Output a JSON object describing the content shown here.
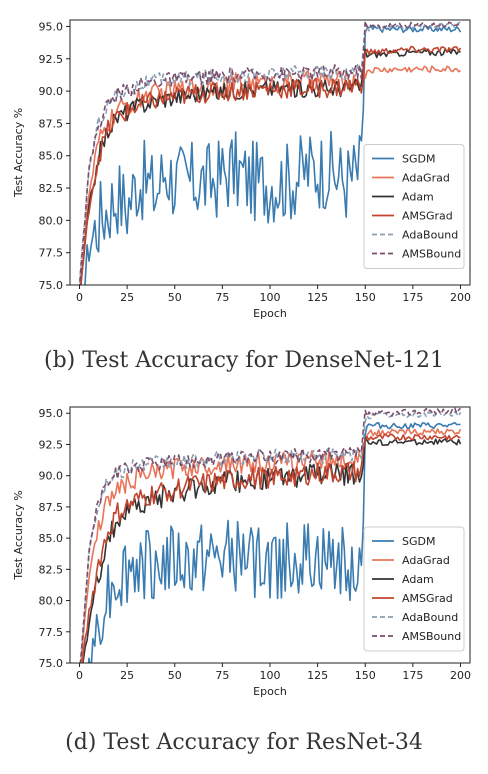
{
  "chart_data": [
    {
      "type": "line",
      "caption": "(b) Test Accuracy for DenseNet-121",
      "xlabel": "Epoch",
      "ylabel": "Test Accuracy %",
      "xlim": [
        -5,
        205
      ],
      "ylim": [
        75.0,
        95.5
      ],
      "xticks": [
        0,
        25,
        50,
        75,
        100,
        125,
        150,
        175,
        200
      ],
      "yticks": [
        "75.0",
        "77.5",
        "80.0",
        "82.5",
        "85.0",
        "87.5",
        "90.0",
        "92.5",
        "95.0"
      ],
      "legend_position": "right-middle",
      "series": [
        {
          "name": "SGDM",
          "color": "#3a7bb0",
          "dash": "solid",
          "points": [
            [
              0,
              72
            ],
            [
              5,
              78
            ],
            [
              10,
              80
            ],
            [
              15,
              81
            ],
            [
              20,
              82
            ],
            [
              25,
              81
            ],
            [
              30,
              83
            ],
            [
              35,
              83
            ],
            [
              40,
              82
            ],
            [
              45,
              84
            ],
            [
              50,
              83
            ],
            [
              60,
              83
            ],
            [
              70,
              83
            ],
            [
              80,
              84
            ],
            [
              90,
              83
            ],
            [
              100,
              83
            ],
            [
              110,
              83
            ],
            [
              120,
              84
            ],
            [
              130,
              84
            ],
            [
              140,
              83
            ],
            [
              148,
              84
            ],
            [
              150,
              94.8
            ],
            [
              160,
              94.8
            ],
            [
              180,
              94.8
            ],
            [
              200,
              94.8
            ]
          ],
          "noise": 3.2
        },
        {
          "name": "AdaGrad",
          "color": "#e8755a",
          "dash": "solid",
          "points": [
            [
              0,
              74
            ],
            [
              5,
              82
            ],
            [
              10,
              86
            ],
            [
              15,
              87.5
            ],
            [
              20,
              88.5
            ],
            [
              30,
              89.3
            ],
            [
              40,
              89.8
            ],
            [
              60,
              90.3
            ],
            [
              80,
              90.6
            ],
            [
              100,
              90.6
            ],
            [
              120,
              90.8
            ],
            [
              148,
              90.8
            ],
            [
              150,
              91.6
            ],
            [
              175,
              91.7
            ],
            [
              200,
              91.7
            ]
          ],
          "noise": 0.8
        },
        {
          "name": "Adam",
          "color": "#333333",
          "dash": "solid",
          "points": [
            [
              0,
              74
            ],
            [
              5,
              81
            ],
            [
              10,
              85
            ],
            [
              15,
              87
            ],
            [
              20,
              88
            ],
            [
              30,
              88.8
            ],
            [
              40,
              89.3
            ],
            [
              60,
              89.8
            ],
            [
              80,
              90
            ],
            [
              100,
              90.2
            ],
            [
              120,
              90.2
            ],
            [
              148,
              90.3
            ],
            [
              150,
              92.8
            ],
            [
              175,
              93.0
            ],
            [
              200,
              93.0
            ]
          ],
          "noise": 0.7
        },
        {
          "name": "AMSGrad",
          "color": "#c1442e",
          "dash": "solid",
          "points": [
            [
              0,
              74
            ],
            [
              5,
              81
            ],
            [
              10,
              85
            ],
            [
              15,
              87
            ],
            [
              20,
              88
            ],
            [
              30,
              88.8
            ],
            [
              40,
              89.3
            ],
            [
              60,
              89.8
            ],
            [
              80,
              90
            ],
            [
              100,
              90.2
            ],
            [
              120,
              90.2
            ],
            [
              148,
              90.4
            ],
            [
              150,
              93.0
            ],
            [
              175,
              93.2
            ],
            [
              200,
              93.2
            ]
          ],
          "noise": 0.8
        },
        {
          "name": "AdaBound",
          "color": "#8a9fb3",
          "dash": "dashed",
          "points": [
            [
              0,
              75
            ],
            [
              5,
              84
            ],
            [
              10,
              87.5
            ],
            [
              15,
              89
            ],
            [
              20,
              89.8
            ],
            [
              30,
              90.4
            ],
            [
              40,
              90.8
            ],
            [
              60,
              91.0
            ],
            [
              80,
              91.2
            ],
            [
              100,
              91.3
            ],
            [
              120,
              91.4
            ],
            [
              148,
              91.5
            ],
            [
              150,
              94.9
            ],
            [
              175,
              95.0
            ],
            [
              200,
              95.1
            ]
          ],
          "noise": 0.6
        },
        {
          "name": "AMSBound",
          "color": "#7a4e6b",
          "dash": "dashed",
          "points": [
            [
              0,
              75
            ],
            [
              5,
              84
            ],
            [
              10,
              87.5
            ],
            [
              15,
              89
            ],
            [
              20,
              89.8
            ],
            [
              30,
              90.4
            ],
            [
              40,
              90.8
            ],
            [
              60,
              91.0
            ],
            [
              80,
              91.2
            ],
            [
              100,
              91.3
            ],
            [
              120,
              91.4
            ],
            [
              148,
              91.5
            ],
            [
              150,
              95.0
            ],
            [
              175,
              95.1
            ],
            [
              200,
              95.2
            ]
          ],
          "noise": 0.6
        }
      ]
    },
    {
      "type": "line",
      "caption": "(d) Test Accuracy for ResNet-34",
      "xlabel": "Epoch",
      "ylabel": "Test Accuracy %",
      "xlim": [
        -5,
        205
      ],
      "ylim": [
        75.0,
        95.5
      ],
      "xticks": [
        0,
        25,
        50,
        75,
        100,
        125,
        150,
        175,
        200
      ],
      "yticks": [
        "75.0",
        "77.5",
        "80.0",
        "82.5",
        "85.0",
        "87.5",
        "90.0",
        "92.5",
        "95.0"
      ],
      "legend_position": "right-middle",
      "series": [
        {
          "name": "SGDM",
          "color": "#3a7bb0",
          "dash": "solid",
          "points": [
            [
              0,
              70
            ],
            [
              5,
              74
            ],
            [
              10,
              79
            ],
            [
              15,
              81
            ],
            [
              20,
              82
            ],
            [
              30,
              83
            ],
            [
              40,
              83
            ],
            [
              60,
              83
            ],
            [
              80,
              83.5
            ],
            [
              100,
              83
            ],
            [
              120,
              83.5
            ],
            [
              140,
              83
            ],
            [
              148,
              83
            ],
            [
              150,
              94.0
            ],
            [
              175,
              94.0
            ],
            [
              200,
              94.0
            ]
          ],
          "noise": 3.0
        },
        {
          "name": "AdaGrad",
          "color": "#e8755a",
          "dash": "solid",
          "points": [
            [
              0,
              74
            ],
            [
              5,
              82
            ],
            [
              10,
              86
            ],
            [
              15,
              88
            ],
            [
              20,
              89
            ],
            [
              30,
              89.8
            ],
            [
              40,
              90.3
            ],
            [
              60,
              90.8
            ],
            [
              80,
              91
            ],
            [
              100,
              91
            ],
            [
              120,
              91.2
            ],
            [
              148,
              91.3
            ],
            [
              150,
              93.4
            ],
            [
              175,
              93.5
            ],
            [
              200,
              93.5
            ]
          ],
          "noise": 0.8
        },
        {
          "name": "Adam",
          "color": "#333333",
          "dash": "solid",
          "points": [
            [
              0,
              73
            ],
            [
              5,
              78
            ],
            [
              10,
              82
            ],
            [
              15,
              85
            ],
            [
              20,
              86.5
            ],
            [
              30,
              87.5
            ],
            [
              40,
              88.2
            ],
            [
              60,
              89
            ],
            [
              80,
              89.5
            ],
            [
              100,
              89.8
            ],
            [
              120,
              90
            ],
            [
              148,
              90.2
            ],
            [
              150,
              92.6
            ],
            [
              175,
              92.7
            ],
            [
              200,
              92.7
            ]
          ],
          "noise": 0.9
        },
        {
          "name": "AMSGrad",
          "color": "#c1442e",
          "dash": "solid",
          "points": [
            [
              0,
              73
            ],
            [
              5,
              79
            ],
            [
              10,
              83
            ],
            [
              15,
              85.5
            ],
            [
              20,
              87
            ],
            [
              30,
              88
            ],
            [
              40,
              88.6
            ],
            [
              60,
              89.2
            ],
            [
              80,
              89.6
            ],
            [
              100,
              89.9
            ],
            [
              120,
              90.1
            ],
            [
              148,
              90.3
            ],
            [
              150,
              93.0
            ],
            [
              175,
              93.1
            ],
            [
              200,
              93.1
            ]
          ],
          "noise": 0.9
        },
        {
          "name": "AdaBound",
          "color": "#8a9fb3",
          "dash": "dashed",
          "points": [
            [
              0,
              74
            ],
            [
              5,
              84
            ],
            [
              10,
              88
            ],
            [
              15,
              89.5
            ],
            [
              20,
              90.2
            ],
            [
              30,
              90.8
            ],
            [
              40,
              91.0
            ],
            [
              60,
              91.2
            ],
            [
              80,
              91.4
            ],
            [
              100,
              91.5
            ],
            [
              120,
              91.6
            ],
            [
              148,
              91.7
            ],
            [
              150,
              94.8
            ],
            [
              175,
              94.9
            ],
            [
              200,
              95.0
            ]
          ],
          "noise": 0.6
        },
        {
          "name": "AMSBound",
          "color": "#7a4e6b",
          "dash": "dashed",
          "points": [
            [
              0,
              74
            ],
            [
              5,
              84
            ],
            [
              10,
              88
            ],
            [
              15,
              89.5
            ],
            [
              20,
              90.2
            ],
            [
              30,
              90.8
            ],
            [
              40,
              91.0
            ],
            [
              60,
              91.2
            ],
            [
              80,
              91.4
            ],
            [
              100,
              91.5
            ],
            [
              120,
              91.6
            ],
            [
              148,
              91.7
            ],
            [
              150,
              94.9
            ],
            [
              175,
              95.1
            ],
            [
              200,
              95.2
            ]
          ],
          "noise": 0.6
        }
      ]
    }
  ]
}
